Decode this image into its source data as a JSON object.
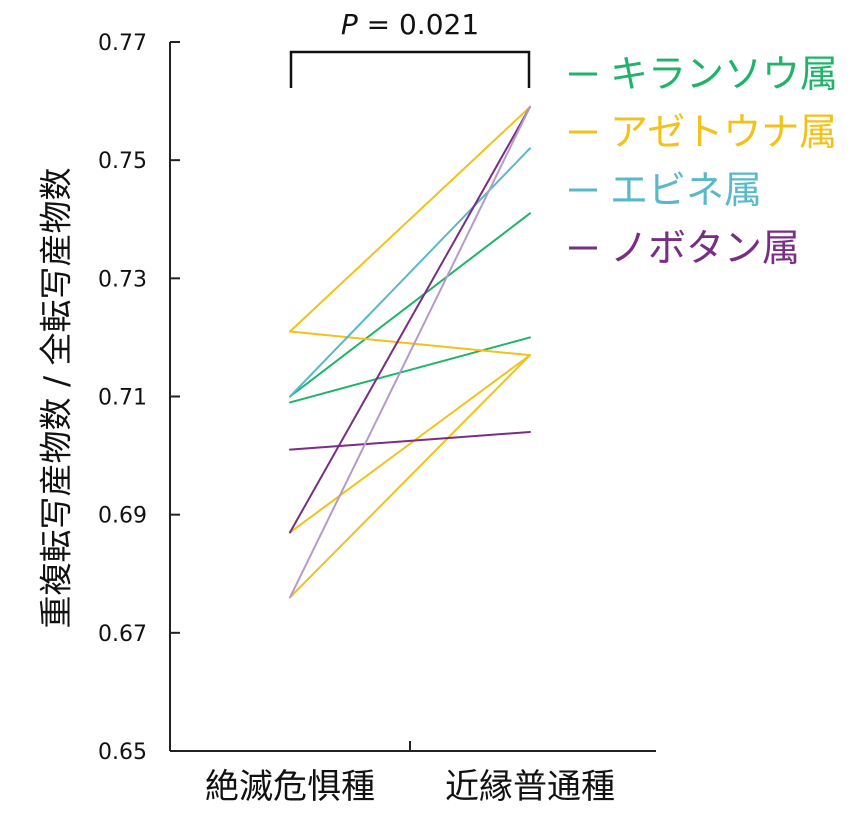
{
  "chart_data": {
    "type": "line",
    "ylabel": "重複転写産物数 / 全転写産物数",
    "categories": [
      "絶滅危惧種",
      "近縁普通種"
    ],
    "ylim": [
      0.65,
      0.77
    ],
    "yticks": [
      "0.65",
      "0.67",
      "0.69",
      "0.71",
      "0.73",
      "0.75",
      "0.77"
    ],
    "annotation": {
      "p_symbol": "P",
      "p_rest": " = 0.021"
    },
    "grid": false,
    "legend_position": "top-right",
    "legend": [
      {
        "label": "キランソウ属",
        "color": "#1fb36b"
      },
      {
        "label": "アゼトウナ属",
        "color": "#f2c21b"
      },
      {
        "label": "エビネ属",
        "color": "#5bb8c8"
      },
      {
        "label": "ノボタン属",
        "color": "#7a2d84"
      }
    ],
    "series": [
      {
        "group": "キランソウ属",
        "color": "#1fb36b",
        "values": [
          0.71,
          0.741
        ]
      },
      {
        "group": "キランソウ属",
        "color": "#1fb36b",
        "values": [
          0.709,
          0.72
        ]
      },
      {
        "group": "アゼトウナ属",
        "color": "#f2c21b",
        "values": [
          0.721,
          0.759
        ]
      },
      {
        "group": "アゼトウナ属",
        "color": "#f2c21b",
        "values": [
          0.721,
          0.717
        ]
      },
      {
        "group": "アゼトウナ属",
        "color": "#f2c21b",
        "values": [
          0.687,
          0.717
        ]
      },
      {
        "group": "アゼトウナ属",
        "color": "#f2c21b",
        "values": [
          0.676,
          0.717
        ]
      },
      {
        "group": "エビネ属",
        "color": "#5bb8c8",
        "values": [
          0.71,
          0.752
        ]
      },
      {
        "group": "ノボタン属",
        "color": "#7a2d84",
        "values": [
          0.701,
          0.704
        ]
      },
      {
        "group": "ノボタン属",
        "color": "#7a2d84",
        "values": [
          0.687,
          0.759
        ]
      },
      {
        "group": "ノボタン属",
        "color": "#b49bc8",
        "values": [
          0.676,
          0.759
        ]
      }
    ]
  }
}
